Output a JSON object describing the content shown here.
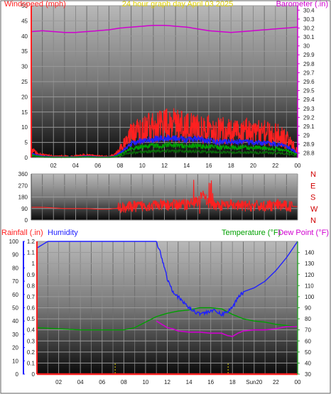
{
  "colors": {
    "windspeed": "#ff2020",
    "barometer": "#d000d0",
    "title": "#e0d000",
    "rainfall": "#ff2020",
    "humidity": "#2020ff",
    "temperature": "#00a000",
    "dewpoint": "#d000d0",
    "tempAxis": "#30a030",
    "dirAxis": "#d00000"
  },
  "chart_data": [
    {
      "type": "line",
      "title": "24 hour graph day   April 03 2025",
      "y_left_label": "Windspeed (mph)",
      "y_right_label": "Barometer (.in)",
      "x_ticks": [
        "02",
        "04",
        "06",
        "08",
        "10",
        "12",
        "14",
        "16",
        "18",
        "20",
        "22",
        "00"
      ],
      "x_range": [
        0,
        24
      ],
      "y_left_range": [
        0,
        50
      ],
      "y_left_ticks": [
        "0",
        "5",
        "10",
        "15",
        "20",
        "25",
        "30",
        "35",
        "40",
        "45",
        "50"
      ],
      "y_right_range": [
        28.75,
        30.45
      ],
      "y_right_ticks": [
        "28.8",
        "28.9",
        "29",
        "29.1",
        "29.2",
        "29.3",
        "29.4",
        "29.5",
        "29.6",
        "29.7",
        "29.8",
        "29.9",
        "30",
        "30.1",
        "30.2",
        "30.3",
        "30.4"
      ],
      "grid": true,
      "series": [
        {
          "name": "Windspeed (mph)",
          "axis": "left",
          "x": [
            0,
            1,
            2,
            3,
            4,
            5,
            6,
            7,
            7.5,
            8,
            8.5,
            9,
            9.5,
            10,
            10.5,
            11,
            11.5,
            12,
            12.5,
            13,
            13.5,
            14,
            14.5,
            15,
            15.5,
            16,
            16.5,
            17,
            17.5,
            18,
            18.5,
            19,
            19.5,
            20,
            20.5,
            21,
            21.5,
            22,
            22.5,
            23,
            23.5,
            24
          ],
          "values": [
            2.5,
            1,
            0.5,
            0.5,
            0.5,
            1,
            0.5,
            0.5,
            1,
            3,
            6,
            9,
            10,
            11,
            11.5,
            12,
            12,
            12.5,
            13,
            12.5,
            12,
            11.5,
            12,
            12.5,
            11,
            11,
            10.5,
            10,
            10.5,
            10,
            10,
            10.5,
            10,
            10,
            9.5,
            9.5,
            9,
            9,
            8,
            7,
            5,
            3
          ]
        },
        {
          "name": "Barometer (.in)",
          "axis": "right",
          "x": [
            0,
            1,
            2,
            3,
            4,
            5,
            6,
            7,
            8,
            9,
            10,
            11,
            12,
            13,
            14,
            15,
            16,
            17,
            18,
            19,
            20,
            21,
            22,
            23,
            24
          ],
          "values": [
            30.16,
            30.17,
            30.16,
            30.15,
            30.15,
            30.16,
            30.17,
            30.18,
            30.2,
            30.21,
            30.22,
            30.23,
            30.23,
            30.22,
            30.21,
            30.19,
            30.17,
            30.16,
            30.15,
            30.16,
            30.17,
            30.18,
            30.19,
            30.2,
            30.21
          ]
        }
      ]
    },
    {
      "type": "line",
      "y_right_label": "N W S E N",
      "y_left_ticks": [
        "0",
        "90",
        "180",
        "270",
        "360"
      ],
      "y_left_range": [
        0,
        360
      ],
      "x_range": [
        0,
        24
      ],
      "series": [
        {
          "name": "Wind direction",
          "x": [
            0,
            1,
            2,
            3,
            4,
            5,
            6,
            7,
            8,
            9,
            10,
            11,
            12,
            13,
            14,
            15,
            15.5,
            16,
            17,
            18,
            19,
            20,
            21,
            22,
            23,
            24
          ],
          "values": [
            100,
            100,
            95,
            90,
            90,
            90,
            85,
            85,
            95,
            105,
            110,
            115,
            115,
            120,
            125,
            140,
            200,
            130,
            115,
            115,
            110,
            110,
            110,
            115,
            110,
            105
          ]
        }
      ]
    },
    {
      "type": "line",
      "y_left_label": "Rainfall (.in)",
      "y_left2_label": "Humidity",
      "y_right_label": "Temperature (°F)",
      "y_right2_label": "Dew Point (°F)",
      "x_ticks": [
        "02",
        "04",
        "06",
        "08",
        "10",
        "12",
        "14",
        "16",
        "18",
        "Sun20",
        "22",
        "00"
      ],
      "x_range": [
        0,
        24
      ],
      "rain_range": [
        0,
        1.2
      ],
      "rain_ticks": [
        "0",
        "0.1",
        "0.2",
        "0.3",
        "0.4",
        "0.5",
        "0.6",
        "0.7",
        "0.8",
        "0.9",
        "1",
        "1.1",
        "1.2"
      ],
      "humidity_range": [
        0,
        100
      ],
      "humidity_ticks": [
        "0",
        "10",
        "20",
        "30",
        "40",
        "50",
        "60",
        "70",
        "80",
        "90",
        "100"
      ],
      "temp_range": [
        30,
        150
      ],
      "temp_ticks": [
        "30",
        "40",
        "50",
        "60",
        "70",
        "80",
        "90",
        "100",
        "110",
        "120",
        "130",
        "140"
      ],
      "grid": true,
      "series": [
        {
          "name": "Humidity",
          "axis": "humidity",
          "x": [
            0,
            1,
            2,
            4,
            6,
            8,
            10,
            11,
            11.5,
            12,
            12.5,
            13,
            13.5,
            14,
            14.5,
            15,
            15.5,
            16,
            16.5,
            17,
            17.5,
            18,
            18.5,
            19,
            20,
            21,
            22,
            23,
            24
          ],
          "values": [
            95,
            100,
            100,
            100,
            100,
            100,
            100,
            100,
            88,
            72,
            63,
            58,
            54,
            50,
            47,
            46,
            46,
            48,
            47,
            45,
            47,
            50,
            58,
            62,
            65,
            70,
            78,
            88,
            100
          ]
        },
        {
          "name": "Temperature (°F)",
          "axis": "temp",
          "x": [
            0,
            2,
            4,
            6,
            8,
            9,
            10,
            11,
            12,
            13,
            14,
            15,
            16,
            17,
            18,
            19,
            20,
            21,
            22,
            23,
            24
          ],
          "values": [
            72,
            71,
            70,
            70,
            70,
            72,
            77,
            82,
            85,
            87,
            88,
            90,
            90,
            89,
            84,
            80,
            78,
            77,
            75,
            74,
            73
          ]
        },
        {
          "name": "Dew Point (°F)",
          "axis": "temp",
          "x": [
            11,
            11.5,
            12,
            12.5,
            13,
            14,
            15,
            16,
            17,
            17.5,
            18,
            18.5,
            19,
            20,
            21,
            22,
            23,
            24
          ],
          "values": [
            78,
            75,
            72,
            71,
            69,
            68,
            68,
            67,
            67,
            65,
            64,
            67,
            69,
            70,
            70,
            71,
            73,
            73
          ]
        },
        {
          "name": "Rainfall (.in)",
          "axis": "rain",
          "x": [
            0,
            24
          ],
          "values": [
            0,
            0
          ]
        }
      ]
    }
  ]
}
